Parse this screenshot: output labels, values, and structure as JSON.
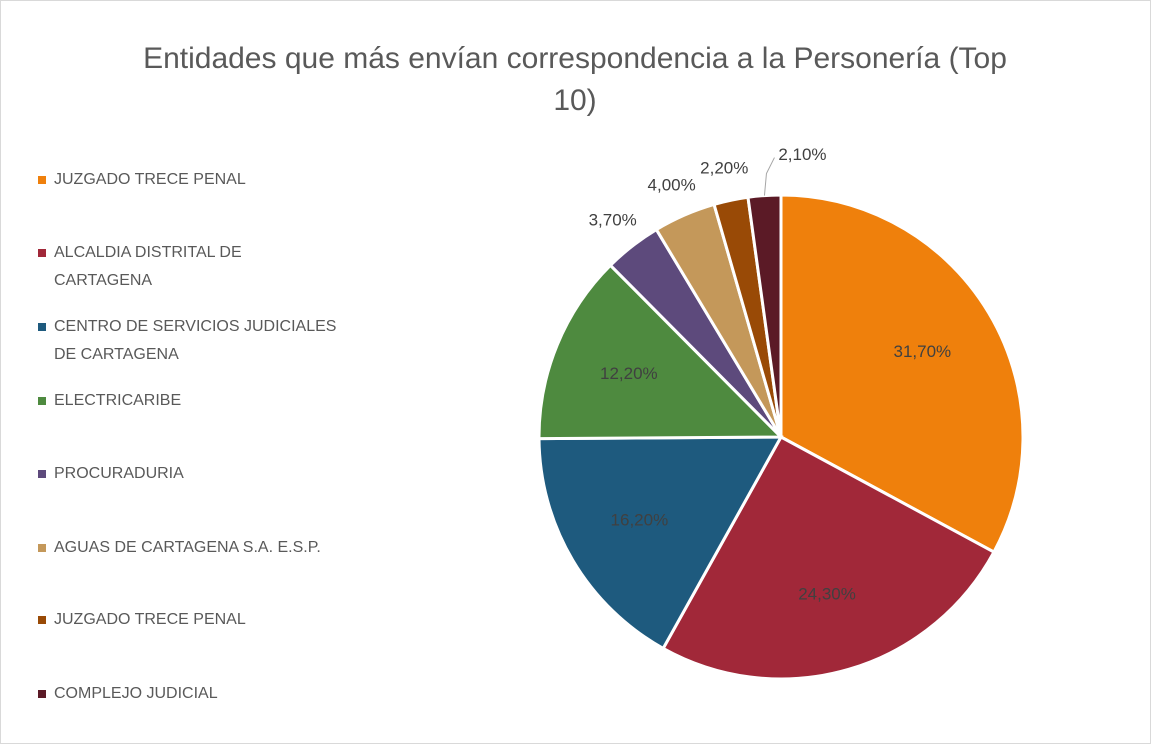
{
  "chart_data": {
    "type": "pie",
    "title": "Entidades que más envían correspondencia a la Personería (Top 10)",
    "categories": [
      "JUZGADO TRECE PENAL",
      "ALCALDIA DISTRITAL DE CARTAGENA",
      "CENTRO DE SERVICIOS JUDICIALES DE CARTAGENA",
      "ELECTRICARIBE",
      "PROCURADURIA",
      "AGUAS DE CARTAGENA S.A. E.S.P.",
      "JUZGADO TRECE PENAL",
      "COMPLEJO JUDICIAL"
    ],
    "values": [
      31.7,
      24.3,
      16.2,
      12.2,
      3.7,
      4.0,
      2.2,
      2.1
    ],
    "value_labels": [
      "31,70%",
      "24,30%",
      "16,20%",
      "12,20%",
      "3,70%",
      "4,00%",
      "2,20%",
      "2,10%"
    ],
    "colors": [
      "#ef800c",
      "#a12839",
      "#1e5a7e",
      "#4e8a3f",
      "#5d4a7c",
      "#c4985a",
      "#994a06",
      "#5b1a26"
    ],
    "legend": "left"
  }
}
